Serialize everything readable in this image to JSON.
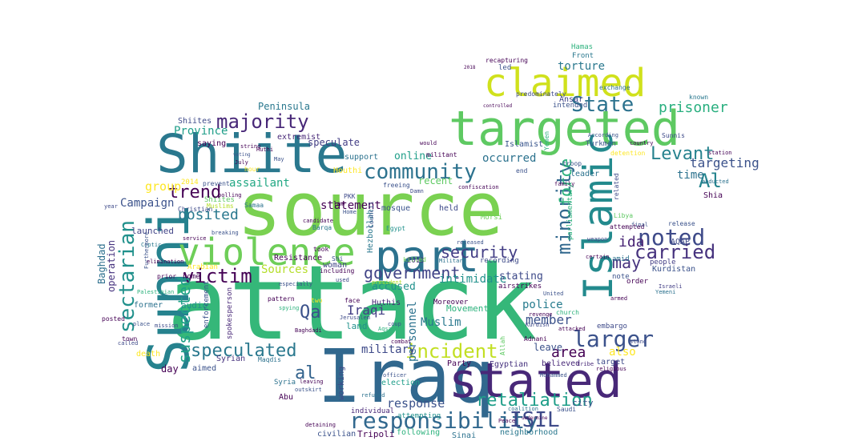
{
  "words": [
    {
      "text": "attack",
      "color": "#35b779"
    },
    {
      "text": "source",
      "color": "#7ad151"
    },
    {
      "text": "Iraq",
      "color": "#31688e"
    },
    {
      "text": "Sunni",
      "color": "#26828e"
    },
    {
      "text": "Shiite",
      "color": "#2a788e"
    },
    {
      "text": "targeted",
      "color": "#5ec962"
    },
    {
      "text": "stated",
      "color": "#482878"
    },
    {
      "text": "violence",
      "color": "#6ece58"
    },
    {
      "text": "part",
      "color": "#2c728e"
    },
    {
      "text": "claimed",
      "color": "#d0e11c"
    },
    {
      "text": "Islamic",
      "color": "#238a8d"
    },
    {
      "text": "responsibility",
      "color": "#31688e"
    },
    {
      "text": "retaliation",
      "color": "#1f9e89"
    },
    {
      "text": "incident",
      "color": "#c2df23"
    },
    {
      "text": "community",
      "color": "#2c728e"
    },
    {
      "text": "sectarian",
      "color": "#21918c"
    },
    {
      "text": "larger",
      "color": "#3b528b"
    },
    {
      "text": "noted",
      "color": "#3e4a89"
    },
    {
      "text": "carried",
      "color": "#46327e"
    },
    {
      "text": "State",
      "color": "#2c728e"
    },
    {
      "text": "majority",
      "color": "#482878"
    },
    {
      "text": "victim",
      "color": "#440154"
    },
    {
      "text": "speculated",
      "color": "#2a788e"
    },
    {
      "text": "government",
      "color": "#414487"
    },
    {
      "text": "security",
      "color": "#433e85"
    },
    {
      "text": "suspected",
      "color": "#1fa187"
    },
    {
      "text": "minority",
      "color": "#31688e"
    },
    {
      "text": "Levant",
      "color": "#26828e"
    },
    {
      "text": "Al",
      "color": "#25848e"
    },
    {
      "text": "ISIL",
      "color": "#3e4a89"
    },
    {
      "text": "trend",
      "color": "#440154"
    },
    {
      "text": "posited",
      "color": "#2a788e"
    },
    {
      "text": "Qa",
      "color": "#3b528b"
    },
    {
      "text": "al",
      "color": "#33638d"
    },
    {
      "text": "may",
      "color": "#46327e"
    },
    {
      "text": "ida",
      "color": "#482475"
    },
    {
      "text": "force",
      "color": "#2db27d"
    },
    {
      "text": "prisoner",
      "color": "#29af7f"
    },
    {
      "text": "targeting",
      "color": "#3b528b"
    },
    {
      "text": "time",
      "color": "#2c728e"
    },
    {
      "text": "Sources",
      "color": "#b5de2b"
    },
    {
      "text": "group",
      "color": "#fde725"
    },
    {
      "text": "assailant",
      "color": "#22a884"
    },
    {
      "text": "Province",
      "color": "#1f9e89"
    },
    {
      "text": "torture",
      "color": "#2a788e"
    },
    {
      "text": "occurred",
      "color": "#2c728e"
    },
    {
      "text": "intimidate",
      "color": "#21918c"
    },
    {
      "text": "member",
      "color": "#3b528b"
    },
    {
      "text": "area",
      "color": "#440154"
    },
    {
      "text": "also",
      "color": "#fde725"
    },
    {
      "text": "Iraqi",
      "color": "#433e85"
    },
    {
      "text": "Muslim",
      "color": "#2a788e"
    },
    {
      "text": "statement",
      "color": "#440154"
    },
    {
      "text": "online",
      "color": "#1f9e89"
    },
    {
      "text": "response",
      "color": "#3b528b"
    },
    {
      "text": "personnel",
      "color": "#2c728e"
    },
    {
      "text": "police",
      "color": "#287c8e"
    },
    {
      "text": "military",
      "color": "#3e4a89"
    },
    {
      "text": "Campaign",
      "color": "#3b528b"
    },
    {
      "text": "Baghdad",
      "color": "#2d708e"
    },
    {
      "text": "operation",
      "color": "#46337f"
    },
    {
      "text": "launched",
      "color": "#414487"
    },
    {
      "text": "stating",
      "color": "#3e4a89"
    },
    {
      "text": "accused",
      "color": "#21918c"
    },
    {
      "text": "Hamas",
      "color": "#2db27d"
    },
    {
      "text": "Front",
      "color": "#2a788e"
    },
    {
      "text": "recapturing",
      "color": "#440154"
    },
    {
      "text": "Ansar",
      "color": "#414487"
    },
    {
      "text": "intended",
      "color": "#3b528b"
    },
    {
      "text": "Islamist",
      "color": "#39568c"
    },
    {
      "text": "Peninsula",
      "color": "#2a788e"
    },
    {
      "text": "extremist",
      "color": "#482878"
    },
    {
      "text": "speculate",
      "color": "#433e85"
    },
    {
      "text": "saying",
      "color": "#440154"
    },
    {
      "text": "Shiites",
      "color": "#3e4a89"
    },
    {
      "text": "support",
      "color": "#2c728e"
    },
    {
      "text": "Houthi",
      "color": "#fde725"
    },
    {
      "text": "recent",
      "color": "#5ec962"
    },
    {
      "text": "mosque",
      "color": "#3b528b"
    },
    {
      "text": "held",
      "color": "#3e4a89"
    },
    {
      "text": "Hezbollah",
      "color": "#2a788e"
    },
    {
      "text": "Resistance",
      "color": "#440154"
    },
    {
      "text": "woman",
      "color": "#414487"
    },
    {
      "text": "Movement",
      "color": "#2db27d"
    },
    {
      "text": "land",
      "color": "#21918c"
    },
    {
      "text": "Huthis",
      "color": "#482878"
    },
    {
      "text": "leave",
      "color": "#3b528b"
    },
    {
      "text": "believed",
      "color": "#482878"
    },
    {
      "text": "target",
      "color": "#3e4a89"
    },
    {
      "text": "Party",
      "color": "#440154"
    },
    {
      "text": "Egyptian",
      "color": "#46327e"
    },
    {
      "text": "city",
      "color": "#3b528b"
    },
    {
      "text": "Sinai",
      "color": "#2c728e"
    },
    {
      "text": "neighborhood",
      "color": "#2a788e"
    },
    {
      "text": "following",
      "color": "#2db27d"
    },
    {
      "text": "Tripoli",
      "color": "#440154"
    },
    {
      "text": "civilian",
      "color": "#3b528b"
    },
    {
      "text": "individual",
      "color": "#482878"
    },
    {
      "text": "attempting",
      "color": "#21918c"
    },
    {
      "text": "election",
      "color": "#1f9e89"
    },
    {
      "text": "working",
      "color": "#3e4a89"
    },
    {
      "text": "Syria",
      "color": "#2c728e"
    },
    {
      "text": "Abu",
      "color": "#440154"
    },
    {
      "text": "Syrian",
      "color": "#46327e"
    },
    {
      "text": "day",
      "color": "#440154"
    },
    {
      "text": "aimed",
      "color": "#3b528b"
    },
    {
      "text": "death",
      "color": "#fde725"
    },
    {
      "text": "former",
      "color": "#2c728e"
    },
    {
      "text": "audio",
      "color": "#21918c"
    },
    {
      "text": "home",
      "color": "#440154"
    },
    {
      "text": "AQAP",
      "color": "#3e4a89"
    },
    {
      "text": "Shia",
      "color": "#440154"
    },
    {
      "text": "Kurdistan",
      "color": "#3b528b"
    },
    {
      "text": "people",
      "color": "#433e85"
    },
    {
      "text": "order",
      "color": "#440154"
    },
    {
      "text": "amid",
      "color": "#2c728e"
    },
    {
      "text": "note",
      "color": "#3b528b"
    },
    {
      "text": "airstrikes",
      "color": "#440154"
    },
    {
      "text": "embargo",
      "color": "#3e4a89"
    },
    {
      "text": "Moreover",
      "color": "#440154"
    },
    {
      "text": "2013",
      "color": "#46327e"
    },
    {
      "text": "Yemen",
      "color": "#2db27d"
    },
    {
      "text": "Shiites",
      "color": "#5ec962"
    },
    {
      "text": "Arabian",
      "color": "#fde725"
    },
    {
      "text": "Muslims",
      "color": "#b5de2b"
    },
    {
      "text": "2014",
      "color": "#fde725"
    },
    {
      "text": "prevent",
      "color": "#3b528b"
    },
    {
      "text": "PKK",
      "color": "#3e4a89"
    },
    {
      "text": "Council",
      "color": "#3b528b"
    },
    {
      "text": "Morsi",
      "color": "#6ece58"
    },
    {
      "text": "Barqa",
      "color": "#2a788e"
    },
    {
      "text": "candidate",
      "color": "#440154"
    },
    {
      "text": "Egypt",
      "color": "#21918c"
    },
    {
      "text": "militant",
      "color": "#440154"
    },
    {
      "text": "Turkmen",
      "color": "#3b528b"
    },
    {
      "text": "predominately",
      "color": "#3e4a89"
    },
    {
      "text": "exchange",
      "color": "#2c728e"
    },
    {
      "text": "known",
      "color": "#2a788e"
    },
    {
      "text": "Sunnis",
      "color": "#3e4a89"
    },
    {
      "text": "station",
      "color": "#440154"
    },
    {
      "text": "abducted",
      "color": "#2c728e"
    },
    {
      "text": "release",
      "color": "#3b528b"
    },
    {
      "text": "Libya",
      "color": "#5ec962"
    },
    {
      "text": "attempted",
      "color": "#440154"
    },
    {
      "text": "final",
      "color": "#3b528b"
    },
    {
      "text": "weapon",
      "color": "#3e4a89"
    },
    {
      "text": "certain",
      "color": "#440154"
    },
    {
      "text": "Israeli",
      "color": "#433e85"
    },
    {
      "text": "Yemeni",
      "color": "#2c728e"
    },
    {
      "text": "armed",
      "color": "#440154"
    },
    {
      "text": "church",
      "color": "#2db27d"
    },
    {
      "text": "United",
      "color": "#3b528b"
    },
    {
      "text": "revenge",
      "color": "#440154"
    },
    {
      "text": "Kurdish",
      "color": "#3e4a89"
    },
    {
      "text": "attacked",
      "color": "#440154"
    },
    {
      "text": "Mohammed",
      "color": "#3b528b"
    },
    {
      "text": "tribe",
      "color": "#482878"
    },
    {
      "text": "religious",
      "color": "#440154"
    },
    {
      "text": "stand",
      "color": "#3e4a89"
    },
    {
      "text": "coalition",
      "color": "#2c728e"
    },
    {
      "text": "undermine",
      "color": "#440154"
    },
    {
      "text": "Saudi",
      "color": "#3b528b"
    },
    {
      "text": "Adnani",
      "color": "#440154"
    },
    {
      "text": "coup",
      "color": "#3b528b"
    },
    {
      "text": "Aqsa",
      "color": "#2db27d"
    },
    {
      "text": "Jerusalem",
      "color": "#3e4a89"
    },
    {
      "text": "combat",
      "color": "#440154"
    },
    {
      "text": "officer",
      "color": "#3b528b"
    },
    {
      "text": "refused",
      "color": "#2c728e"
    },
    {
      "text": "detaining",
      "color": "#440154"
    },
    {
      "text": "outskirt",
      "color": "#3b528b"
    },
    {
      "text": "leaving",
      "color": "#440154"
    },
    {
      "text": "Christian",
      "color": "#3e4a89"
    },
    {
      "text": "Samaa",
      "color": "#2c728e"
    },
    {
      "text": "Huthi",
      "color": "#440154"
    },
    {
      "text": "breaking",
      "color": "#3b528b"
    },
    {
      "text": "service",
      "color": "#440154"
    },
    {
      "text": "Coptic",
      "color": "#2a788e"
    },
    {
      "text": "elimination",
      "color": "#440154"
    },
    {
      "text": "Furthermore",
      "color": "#3b528b"
    },
    {
      "text": "prior",
      "color": "#440154"
    },
    {
      "text": "Palestinian",
      "color": "#2db27d"
    },
    {
      "text": "town",
      "color": "#440154"
    },
    {
      "text": "called",
      "color": "#3e4a89"
    },
    {
      "text": "posted",
      "color": "#440154"
    },
    {
      "text": "place",
      "color": "#3b528b"
    },
    {
      "text": "mission",
      "color": "#3e4a89"
    },
    {
      "text": "Baghdadi",
      "color": "#440154"
    },
    {
      "text": "Maqdis",
      "color": "#2c728e"
    },
    {
      "text": "enforcement",
      "color": "#3b528b"
    },
    {
      "text": "spokesperson",
      "color": "#482878"
    },
    {
      "text": "including",
      "color": "#440154"
    },
    {
      "text": "especially",
      "color": "#3b528b"
    },
    {
      "text": "spying",
      "color": "#2db27d"
    },
    {
      "text": "face",
      "color": "#440154"
    },
    {
      "text": "Damn",
      "color": "#3e4a89"
    },
    {
      "text": "confiscation",
      "color": "#440154"
    },
    {
      "text": "released",
      "color": "#3b528b"
    },
    {
      "text": "Military",
      "color": "#2c728e"
    },
    {
      "text": "recording",
      "color": "#3e4a89"
    },
    {
      "text": "Allah",
      "color": "#5ec962"
    },
    {
      "text": "would",
      "color": "#440154"
    },
    {
      "text": "Home",
      "color": "#3b528b"
    },
    {
      "text": "law",
      "color": "#440154"
    },
    {
      "text": "freeing",
      "color": "#3b528b"
    },
    {
      "text": "took",
      "color": "#440154"
    },
    {
      "text": "Shi",
      "color": "#3b528b"
    },
    {
      "text": "killed",
      "color": "#6ece58"
    },
    {
      "text": "president",
      "color": "#b5de2b"
    },
    {
      "text": "used",
      "color": "#3e4a89"
    },
    {
      "text": "hour",
      "color": "#fde725"
    },
    {
      "text": "July",
      "color": "#440154"
    },
    {
      "text": "May",
      "color": "#3b528b"
    },
    {
      "text": "string",
      "color": "#440154"
    },
    {
      "text": "voting",
      "color": "#3b528b"
    },
    {
      "text": "polling",
      "color": "#440154"
    },
    {
      "text": "year",
      "color": "#3e4a89"
    },
    {
      "text": "pattern",
      "color": "#440154"
    },
    {
      "text": "two",
      "color": "#fde725"
    },
    {
      "text": "2018",
      "color": "#440154"
    },
    {
      "text": "led",
      "color": "#3b528b"
    },
    {
      "text": "controlled",
      "color": "#440154"
    },
    {
      "text": "troop",
      "color": "#3b528b"
    },
    {
      "text": "leader",
      "color": "#2c728e"
    },
    {
      "text": "related",
      "color": "#3e4a89"
    },
    {
      "text": "detention",
      "color": "#fde725"
    },
    {
      "text": "parliamentary",
      "color": "#2db27d"
    },
    {
      "text": "country",
      "color": "#440154"
    },
    {
      "text": "end",
      "color": "#3b528b"
    },
    {
      "text": "family",
      "color": "#440154"
    },
    {
      "text": "According",
      "color": "#3b528b"
    },
    {
      "text": "Peace",
      "color": "#440154"
    }
  ]
}
